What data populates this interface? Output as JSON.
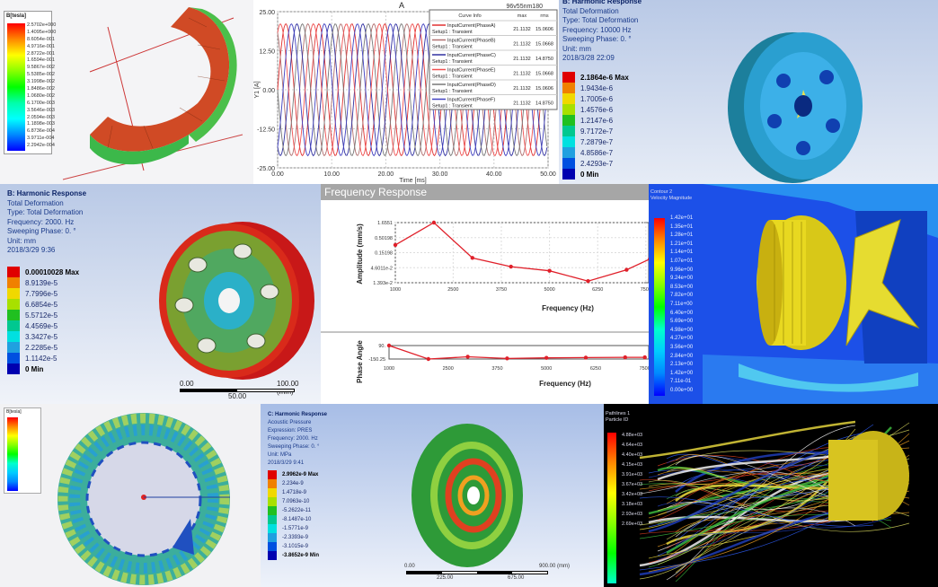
{
  "magnet_panel": {
    "legend_title": "B[tesla]",
    "legend_values": [
      "2.5702e+000",
      "1.4095e+000",
      "8.6054e-001",
      "4.9716e-001",
      "2.8722e-001",
      "1.6594e-001",
      "9.5867e-002",
      "5.5385e-002",
      "3.1998e-002",
      "1.8486e-002",
      "1.0680e-002",
      "6.1700e-003",
      "3.5646e-003",
      "2.0594e-003",
      "1.1898e-003",
      "6.8736e-004",
      "3.9711e-004",
      "2.2942e-004"
    ]
  },
  "transient_panel": {
    "title": "A",
    "design_name": "96v55nm180",
    "chart_data": {
      "type": "line",
      "xlabel": "Time [ms]",
      "ylabel": "Y1 [A]",
      "xlim": [
        0,
        50
      ],
      "ylim": [
        -25,
        25
      ],
      "x_ticks": [
        "0.00",
        "10.00",
        "20.00",
        "30.00",
        "40.00",
        "50.00"
      ],
      "y_ticks": [
        "25.00",
        "12.50",
        "0.00",
        "-12.50",
        "-25.00"
      ],
      "grid": true,
      "amplitude": 21.1132,
      "period_ms": 6.1,
      "series": [
        {
          "name": "InputCurrent(PhaseA)",
          "setup": "Setup1 : Transient",
          "max": "21.1132",
          "rms": "15.0606",
          "color": "#e03030",
          "phase_deg": 0
        },
        {
          "name": "InputCurrent(PhaseB)",
          "setup": "Setup1 : Transient",
          "max": "21.1132",
          "rms": "15.0668",
          "color": "#b07070",
          "phase_deg": 120
        },
        {
          "name": "InputCurrent(PhaseC)",
          "setup": "Setup1 : Transient",
          "max": "21.1132",
          "rms": "14.8750",
          "color": "#3030a0",
          "phase_deg": 240
        },
        {
          "name": "InputCurrent(PhaseE)",
          "setup": "Setup1 : Transient",
          "max": "21.1132",
          "rms": "15.0668",
          "color": "#f05050",
          "phase_deg": 60
        },
        {
          "name": "InputCurrent(PhaseD)",
          "setup": "Setup1 : Transient",
          "max": "21.1132",
          "rms": "15.0606",
          "color": "#777777",
          "phase_deg": 180
        },
        {
          "name": "InputCurrent(PhaseF)",
          "setup": "Setup1 : Transient",
          "max": "21.1132",
          "rms": "14.8750",
          "color": "#4040c0",
          "phase_deg": 300
        }
      ],
      "legend": {
        "header": [
          "Curve Info",
          "max",
          "rms"
        ],
        "placement": "top-right"
      }
    }
  },
  "harmonic_10k_panel": {
    "info": [
      "B: Harmonic Response",
      "Total Deformation",
      "Type: Total Deformation",
      "Frequency: 10000 Hz",
      "Sweeping Phase: 0. °",
      "Unit: mm",
      "2018/3/28 22:09"
    ],
    "legend_values": [
      "2.1864e-6 Max",
      "1.9434e-6",
      "1.7005e-6",
      "1.4576e-6",
      "1.2147e-6",
      "9.7172e-7",
      "7.2879e-7",
      "4.8586e-7",
      "2.4293e-7",
      "0 Min"
    ]
  },
  "harmonic_2k_panel": {
    "info": [
      "B: Harmonic Response",
      "Total Deformation",
      "Type: Total Deformation",
      "Frequency: 2000. Hz",
      "Sweeping Phase: 0. °",
      "Unit: mm",
      "2018/3/29 9:36"
    ],
    "legend_values": [
      "0.00010028 Max",
      "8.9139e-5",
      "7.7996e-5",
      "6.6854e-5",
      "5.5712e-5",
      "4.4569e-5",
      "3.3427e-5",
      "2.2285e-5",
      "1.1142e-5",
      "0 Min"
    ],
    "scale": {
      "left": "0.00",
      "mid": "50.00",
      "right": "100.00 (mm)"
    }
  },
  "frequency_panel": {
    "title": "Frequency Response",
    "chart_data": [
      {
        "type": "line",
        "xlabel": "Frequency (Hz)",
        "ylabel": "Amplitude (mm/s)",
        "y_scale": "log",
        "xlim": [
          1000,
          7600
        ],
        "ylim": [
          0.01393,
          1.6551
        ],
        "x_ticks": [
          "1000",
          "2500",
          "3750",
          "5000",
          "6250",
          "7500"
        ],
        "y_ticks": [
          "1.6551",
          "0.50198",
          "0.15198",
          "4.6011e-2",
          "1.393e-2"
        ],
        "grid": true,
        "x": [
          1000,
          2000,
          3000,
          4000,
          5000,
          6000,
          7000,
          7600
        ],
        "values": [
          0.28,
          1.6551,
          0.1,
          0.05,
          0.036,
          0.0158,
          0.039,
          0.091
        ],
        "color": "#e0202a"
      },
      {
        "type": "line",
        "xlabel": "Frequency (Hz)",
        "ylabel": "Phase Angle",
        "xlim": [
          1000,
          7500
        ],
        "ylim": [
          -150.25,
          90
        ],
        "x_ticks": [
          "1000",
          "2500",
          "3750",
          "5000",
          "6250",
          "7500"
        ],
        "y_ticks": [
          "90.",
          "-150.25"
        ],
        "x": [
          1000,
          2000,
          3000,
          4000,
          5000,
          6000,
          7000,
          7500
        ],
        "values": [
          90,
          -150.25,
          -110,
          -140,
          -130,
          -125,
          -120,
          -120
        ],
        "color": "#e0202a"
      }
    ]
  },
  "cfd_velocity_panel": {
    "legend_title": [
      "Contour 2",
      "Velocity Magnitude"
    ],
    "legend_values": [
      "1.42e+01",
      "1.35e+01",
      "1.28e+01",
      "1.21e+01",
      "1.14e+01",
      "1.07e+01",
      "9.96e+00",
      "9.24e+00",
      "8.53e+00",
      "7.82e+00",
      "7.11e+00",
      "6.40e+00",
      "5.69e+00",
      "4.98e+00",
      "4.27e+00",
      "3.56e+00",
      "2.84e+00",
      "2.13e+00",
      "1.42e+00",
      "7.11e-01",
      "0.00e+00"
    ]
  },
  "stator_panel": {
    "legend_title": "B[tesla]"
  },
  "acoustic_panel": {
    "info": [
      "C: Harmonic Response",
      "Acoustic Pressure",
      "Expression: PRES",
      "Frequency: 2000. Hz",
      "Sweeping Phase: 0. °",
      "Unit: MPa",
      "2018/3/29 9:41"
    ],
    "legend_values": [
      "2.9962e-9 Max",
      "2.234e-9",
      "1.4718e-9",
      "7.0963e-10",
      "-5.2622e-11",
      "-8.1487e-10",
      "-1.5771e-9",
      "-2.3393e-9",
      "-3.1015e-9",
      "-3.8652e-9 Min"
    ],
    "scale": {
      "left": "0.00",
      "q1": "225.00",
      "q3": "675.00",
      "right": "900.00 (mm)"
    }
  },
  "pathline_panel": {
    "legend_title": [
      "Pathlines 1",
      "Particle ID"
    ],
    "legend_values": [
      "4.88e+03",
      "4.64e+03",
      "4.40e+03",
      "4.15e+03",
      "3.91e+03",
      "3.67e+03",
      "3.42e+03",
      "3.18e+03",
      "2.93e+03",
      "2.69e+03"
    ]
  }
}
